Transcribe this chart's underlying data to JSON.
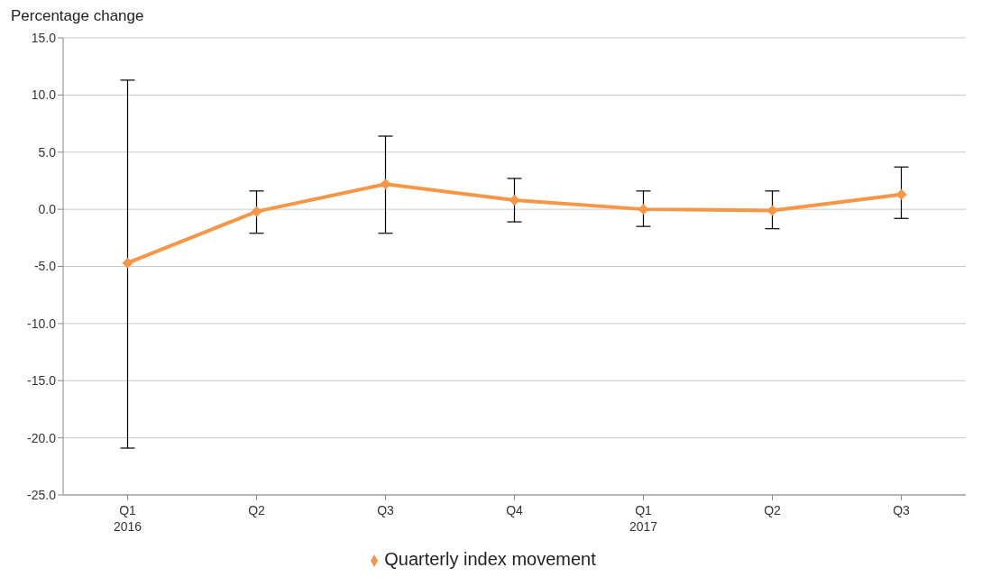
{
  "chart_data": {
    "type": "line",
    "ylabel": "Percentage change",
    "categories": [
      "Q1\n2016",
      "Q2",
      "Q3",
      "Q4",
      "Q1\n2017",
      "Q2",
      "Q3"
    ],
    "series": [
      {
        "name": "Quarterly index movement",
        "color": "#f79646",
        "values": [
          -4.7,
          -0.2,
          2.2,
          0.8,
          0.0,
          -0.1,
          1.3
        ],
        "errors": [
          [
            -20.9,
            11.3
          ],
          [
            -2.1,
            1.6
          ],
          [
            -2.1,
            6.4
          ],
          [
            -1.1,
            2.7
          ],
          [
            -1.5,
            1.6
          ],
          [
            -1.7,
            1.6
          ],
          [
            -0.8,
            3.7
          ]
        ]
      }
    ],
    "ylim": [
      -25,
      15
    ],
    "yticks": [
      {
        "value": -25,
        "label": "-25.0"
      },
      {
        "value": -20,
        "label": "-20.0"
      },
      {
        "value": -15,
        "label": "-15.0"
      },
      {
        "value": -10,
        "label": "-10.0"
      },
      {
        "value": -5,
        "label": "-5.0"
      },
      {
        "value": 0,
        "label": "0.0"
      },
      {
        "value": 5,
        "label": "5.0"
      },
      {
        "value": 10,
        "label": "10.0"
      },
      {
        "value": 15,
        "label": "15.0"
      }
    ],
    "grid": "y",
    "legend": "bottom",
    "marker": "diamond",
    "line_style": "solid"
  }
}
